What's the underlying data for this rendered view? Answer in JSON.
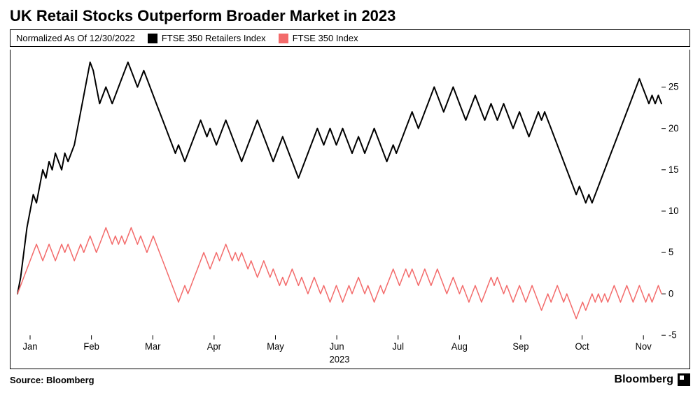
{
  "title": "UK Retail Stocks Outperform Broader Market in 2023",
  "normalized_note": "Normalized As Of 12/30/2022",
  "source": "Source: Bloomberg",
  "brand": "Bloomberg",
  "chart": {
    "type": "line",
    "background_color": "#ffffff",
    "border_color": "#000000",
    "ylim": [
      -5,
      29
    ],
    "yticks": [
      -5,
      0,
      5,
      10,
      15,
      20,
      25
    ],
    "x_months": [
      "Jan",
      "Feb",
      "Mar",
      "Apr",
      "May",
      "Jun",
      "Jul",
      "Aug",
      "Sep",
      "Oct",
      "Nov"
    ],
    "x_year_label": "2023",
    "series": [
      {
        "name": "FTSE 350 Retailers Index",
        "color": "#000000",
        "line_width": 2,
        "data": [
          0,
          2,
          5,
          8,
          10,
          12,
          11,
          13,
          15,
          14,
          16,
          15,
          17,
          16,
          15,
          17,
          16,
          17,
          18,
          20,
          22,
          24,
          26,
          28,
          27,
          25,
          23,
          24,
          25,
          24,
          23,
          24,
          25,
          26,
          27,
          28,
          27,
          26,
          25,
          26,
          27,
          26,
          25,
          24,
          23,
          22,
          21,
          20,
          19,
          18,
          17,
          18,
          17,
          16,
          17,
          18,
          19,
          20,
          21,
          20,
          19,
          20,
          19,
          18,
          19,
          20,
          21,
          20,
          19,
          18,
          17,
          16,
          17,
          18,
          19,
          20,
          21,
          20,
          19,
          18,
          17,
          16,
          17,
          18,
          19,
          18,
          17,
          16,
          15,
          14,
          15,
          16,
          17,
          18,
          19,
          20,
          19,
          18,
          19,
          20,
          19,
          18,
          19,
          20,
          19,
          18,
          17,
          18,
          19,
          18,
          17,
          18,
          19,
          20,
          19,
          18,
          17,
          16,
          17,
          18,
          17,
          18,
          19,
          20,
          21,
          22,
          21,
          20,
          21,
          22,
          23,
          24,
          25,
          24,
          23,
          22,
          23,
          24,
          25,
          24,
          23,
          22,
          21,
          22,
          23,
          24,
          23,
          22,
          21,
          22,
          23,
          22,
          21,
          22,
          23,
          22,
          21,
          20,
          21,
          22,
          21,
          20,
          19,
          20,
          21,
          22,
          21,
          22,
          21,
          20,
          19,
          18,
          17,
          16,
          15,
          14,
          13,
          12,
          13,
          12,
          11,
          12,
          11,
          12,
          13,
          14,
          15,
          16,
          17,
          18,
          19,
          20,
          21,
          22,
          23,
          24,
          25,
          26,
          25,
          24,
          23,
          24,
          23,
          24,
          23
        ]
      },
      {
        "name": "FTSE 350 Index",
        "color": "#f36b6b",
        "line_width": 1.5,
        "data": [
          0,
          1,
          2,
          3,
          4,
          5,
          6,
          5,
          4,
          5,
          6,
          5,
          4,
          5,
          6,
          5,
          6,
          5,
          4,
          5,
          6,
          5,
          6,
          7,
          6,
          5,
          6,
          7,
          8,
          7,
          6,
          7,
          6,
          7,
          6,
          7,
          8,
          7,
          6,
          7,
          6,
          5,
          6,
          7,
          6,
          5,
          4,
          3,
          2,
          1,
          0,
          -1,
          0,
          1,
          0,
          1,
          2,
          3,
          4,
          5,
          4,
          3,
          4,
          5,
          4,
          5,
          6,
          5,
          4,
          5,
          4,
          5,
          4,
          3,
          4,
          3,
          2,
          3,
          4,
          3,
          2,
          3,
          2,
          1,
          2,
          1,
          2,
          3,
          2,
          1,
          2,
          1,
          0,
          1,
          2,
          1,
          0,
          1,
          0,
          -1,
          0,
          1,
          0,
          -1,
          0,
          1,
          0,
          1,
          2,
          1,
          0,
          1,
          0,
          -1,
          0,
          1,
          0,
          1,
          2,
          3,
          2,
          1,
          2,
          3,
          2,
          3,
          2,
          1,
          2,
          3,
          2,
          1,
          2,
          3,
          2,
          1,
          0,
          1,
          2,
          1,
          0,
          1,
          0,
          -1,
          0,
          1,
          0,
          -1,
          0,
          1,
          2,
          1,
          2,
          1,
          0,
          1,
          0,
          -1,
          0,
          1,
          0,
          -1,
          0,
          1,
          0,
          -1,
          -2,
          -1,
          0,
          -1,
          0,
          1,
          0,
          -1,
          0,
          -1,
          -2,
          -3,
          -2,
          -1,
          -2,
          -1,
          0,
          -1,
          0,
          -1,
          0,
          -1,
          0,
          1,
          0,
          -1,
          0,
          1,
          0,
          -1,
          0,
          1,
          0,
          -1,
          0,
          -1,
          0,
          1,
          0
        ]
      }
    ]
  }
}
